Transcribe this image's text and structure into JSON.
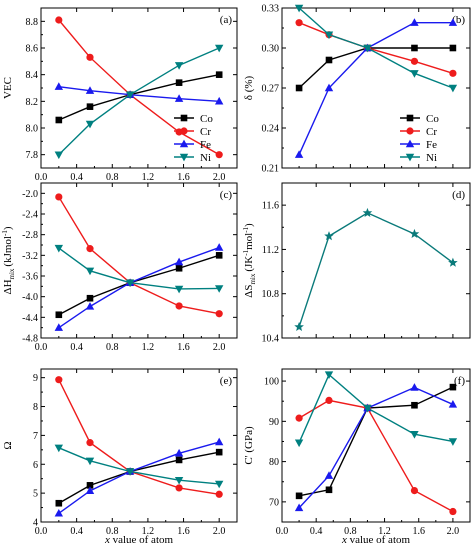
{
  "xlabel_prefix": "x",
  "xlabel_suffix": " value of atom",
  "chart_data": [
    {
      "id": "a",
      "panel_label": "(a)",
      "type": "line",
      "ylabel": "VEC",
      "x": [
        0.2,
        0.55,
        1.0,
        1.55,
        2.0
      ],
      "xlim": [
        0.0,
        2.2
      ],
      "xticks": [
        0.0,
        0.4,
        0.8,
        1.2,
        1.6,
        2.0
      ],
      "ylim": [
        7.7,
        8.9
      ],
      "yticks": [
        7.8,
        8.0,
        8.2,
        8.4,
        8.6,
        8.8
      ],
      "ytick_labels": [
        "7.8",
        "8.0",
        "8.2",
        "8.4",
        "8.6",
        "8.8"
      ],
      "show_xtick_labels": true,
      "legend": "bottom-right",
      "series": [
        {
          "name": "Co",
          "values": [
            8.06,
            8.16,
            8.25,
            8.34,
            8.4
          ]
        },
        {
          "name": "Cr",
          "values": [
            8.81,
            8.53,
            8.25,
            7.97,
            7.8
          ]
        },
        {
          "name": "Fe",
          "values": [
            8.31,
            8.28,
            8.25,
            8.22,
            8.2
          ]
        },
        {
          "name": "Ni",
          "values": [
            7.8,
            8.03,
            8.25,
            8.47,
            8.6
          ]
        }
      ]
    },
    {
      "id": "b",
      "panel_label": "(b)",
      "type": "line",
      "ylabel": "δ (%)",
      "x": [
        0.2,
        0.55,
        1.0,
        1.55,
        2.0
      ],
      "xlim": [
        0.0,
        2.2
      ],
      "xticks": [
        0.0,
        0.4,
        0.8,
        1.2,
        1.6,
        2.0
      ],
      "ylim": [
        0.21,
        0.33
      ],
      "yticks": [
        0.21,
        0.24,
        0.27,
        0.3,
        0.33
      ],
      "ytick_labels": [
        "0.21",
        "0.24",
        "0.27",
        "0.30",
        "0.33"
      ],
      "show_xtick_labels": false,
      "legend": "bottom-right",
      "series": [
        {
          "name": "Co",
          "values": [
            0.27,
            0.291,
            0.3,
            0.3,
            0.3
          ]
        },
        {
          "name": "Cr",
          "values": [
            0.319,
            0.31,
            0.3,
            0.29,
            0.281
          ]
        },
        {
          "name": "Fe",
          "values": [
            0.22,
            0.27,
            0.3,
            0.319,
            0.319
          ]
        },
        {
          "name": "Ni",
          "values": [
            0.33,
            0.31,
            0.3,
            0.281,
            0.27
          ]
        }
      ]
    },
    {
      "id": "c",
      "panel_label": "(c)",
      "type": "line",
      "ylabel": "ΔH",
      "ylabel_sub": "mix",
      "ylabel_unit": "(kJmol",
      "ylabel_sup": "-1",
      "ylabel_close": ")",
      "x": [
        0.2,
        0.55,
        1.0,
        1.55,
        2.0
      ],
      "xlim": [
        0.0,
        2.2
      ],
      "xticks": [
        0.0,
        0.4,
        0.8,
        1.2,
        1.6,
        2.0
      ],
      "ylim": [
        -4.8,
        -1.8
      ],
      "yticks": [
        -4.8,
        -4.4,
        -4.0,
        -3.6,
        -3.2,
        -2.8,
        -2.4,
        -2.0
      ],
      "ytick_labels": [
        "-4.8",
        "-4.4",
        "-4.0",
        "-3.6",
        "-3.2",
        "-2.8",
        "-2.4",
        "-2.0"
      ],
      "show_xtick_labels": true,
      "series": [
        {
          "name": "Co",
          "values": [
            -4.35,
            -4.03,
            -3.73,
            -3.45,
            -3.2
          ]
        },
        {
          "name": "Cr",
          "values": [
            -2.07,
            -3.07,
            -3.73,
            -4.18,
            -4.33
          ]
        },
        {
          "name": "Fe",
          "values": [
            -4.6,
            -4.19,
            -3.73,
            -3.33,
            -3.05
          ]
        },
        {
          "name": "Ni",
          "values": [
            -3.06,
            -3.5,
            -3.73,
            -3.85,
            -3.84
          ]
        }
      ]
    },
    {
      "id": "d",
      "panel_label": "(d)",
      "type": "line",
      "ylabel": "ΔS",
      "ylabel_sub": "mix",
      "ylabel_unit": "(JK",
      "ylabel_sup": "-1",
      "ylabel_unit2": "mol",
      "ylabel_sup2": "-1",
      "ylabel_close": ")",
      "x": [
        0.2,
        0.55,
        1.0,
        1.55,
        2.0
      ],
      "xlim": [
        0.0,
        2.2
      ],
      "xticks": [
        0.0,
        0.4,
        0.8,
        1.2,
        1.6,
        2.0
      ],
      "ylim": [
        10.4,
        11.8
      ],
      "yticks": [
        10.4,
        10.8,
        11.2,
        11.6
      ],
      "ytick_labels": [
        "10.4",
        "10.8",
        "11.2",
        "11.6"
      ],
      "show_xtick_labels": false,
      "series": [
        {
          "values": [
            10.5,
            11.32,
            11.53,
            11.34,
            11.08
          ]
        }
      ]
    },
    {
      "id": "e",
      "panel_label": "(e)",
      "type": "line",
      "ylabel": "Ω",
      "x": [
        0.2,
        0.55,
        1.0,
        1.55,
        2.0
      ],
      "xlim": [
        0.0,
        2.2
      ],
      "xticks": [
        0.0,
        0.4,
        0.8,
        1.2,
        1.6,
        2.0
      ],
      "ylim": [
        4.0,
        9.3
      ],
      "yticks": [
        4,
        5,
        6,
        7,
        8,
        9
      ],
      "ytick_labels": [
        "4",
        "5",
        "6",
        "7",
        "8",
        "9"
      ],
      "show_xtick_labels": true,
      "series": [
        {
          "name": "Co",
          "values": [
            4.65,
            5.27,
            5.75,
            6.15,
            6.42
          ]
        },
        {
          "name": "Cr",
          "values": [
            8.93,
            6.75,
            5.75,
            5.18,
            4.96
          ]
        },
        {
          "name": "Fe",
          "values": [
            4.3,
            5.08,
            5.75,
            6.38,
            6.77
          ]
        },
        {
          "name": "Ni",
          "values": [
            6.57,
            6.12,
            5.75,
            5.45,
            5.32
          ]
        }
      ]
    },
    {
      "id": "f",
      "panel_label": "(f)",
      "type": "line",
      "ylabel": "C' (GPa)",
      "x": [
        0.2,
        0.55,
        1.0,
        1.55,
        2.0
      ],
      "xlim": [
        0.0,
        2.2
      ],
      "xticks": [
        0.0,
        0.4,
        0.8,
        1.2,
        1.6,
        2.0
      ],
      "ylim": [
        65,
        103
      ],
      "yticks": [
        70,
        80,
        90,
        100
      ],
      "ytick_labels": [
        "70",
        "80",
        "90",
        "100"
      ],
      "show_xtick_labels": true,
      "series": [
        {
          "name": "Co",
          "values": [
            71.5,
            73.0,
            93.3,
            94.0,
            98.5
          ]
        },
        {
          "name": "Cr",
          "values": [
            90.8,
            95.2,
            93.3,
            72.8,
            67.6
          ]
        },
        {
          "name": "Fe",
          "values": [
            68.5,
            76.5,
            93.3,
            98.4,
            94.2
          ]
        },
        {
          "name": "Ni",
          "values": [
            84.7,
            101.6,
            93.3,
            86.8,
            85.0
          ]
        }
      ]
    }
  ],
  "styles": {
    "Co": {
      "color": "#000000",
      "marker": "square"
    },
    "Cr": {
      "color": "#ee1c1c",
      "marker": "circle"
    },
    "Fe": {
      "color": "#1a1aee",
      "marker": "triangle-up"
    },
    "Ni": {
      "color": "#008080",
      "marker": "triangle-down"
    },
    "single": {
      "color": "#0a7a7a",
      "marker": "star"
    }
  }
}
